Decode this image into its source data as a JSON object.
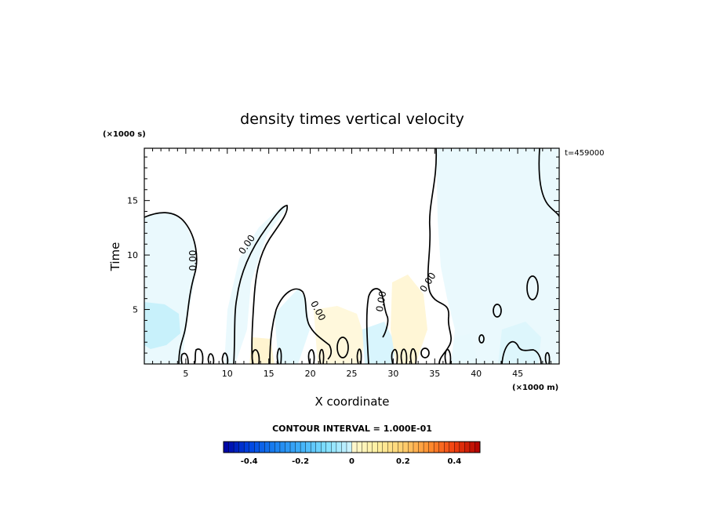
{
  "chart_data": {
    "type": "contour",
    "title": "density times vertical velocity",
    "xlabel": "X coordinate",
    "ylabel": "Time",
    "x_units": "(×1000 m)",
    "y_units": "(×1000 s)",
    "xlim": [
      0,
      50
    ],
    "ylim": [
      0,
      19.8
    ],
    "x_ticks": [
      5,
      10,
      15,
      20,
      25,
      30,
      35,
      40,
      45
    ],
    "y_ticks": [
      5,
      10,
      15
    ],
    "time_label": "t=459000",
    "contour_interval_label": "CONTOUR INTERVAL = 1.000E-01",
    "contour_label": "0.00",
    "colorbar": {
      "min": -0.5,
      "max": 0.5,
      "ticks": [
        "-0.4",
        "-0.2",
        "0",
        "0.2",
        "0.4"
      ],
      "tick_values": [
        -0.4,
        -0.2,
        0,
        0.2,
        0.4
      ],
      "negative_colors": [
        "#0000a0",
        "#0044e0",
        "#1a80f0",
        "#40b0f8",
        "#80e0ff",
        "#d0f4ff"
      ],
      "positive_colors": [
        "#fff8d0",
        "#fff0a0",
        "#ffd070",
        "#ff9030",
        "#f04010",
        "#b00000"
      ]
    },
    "grid": false
  }
}
